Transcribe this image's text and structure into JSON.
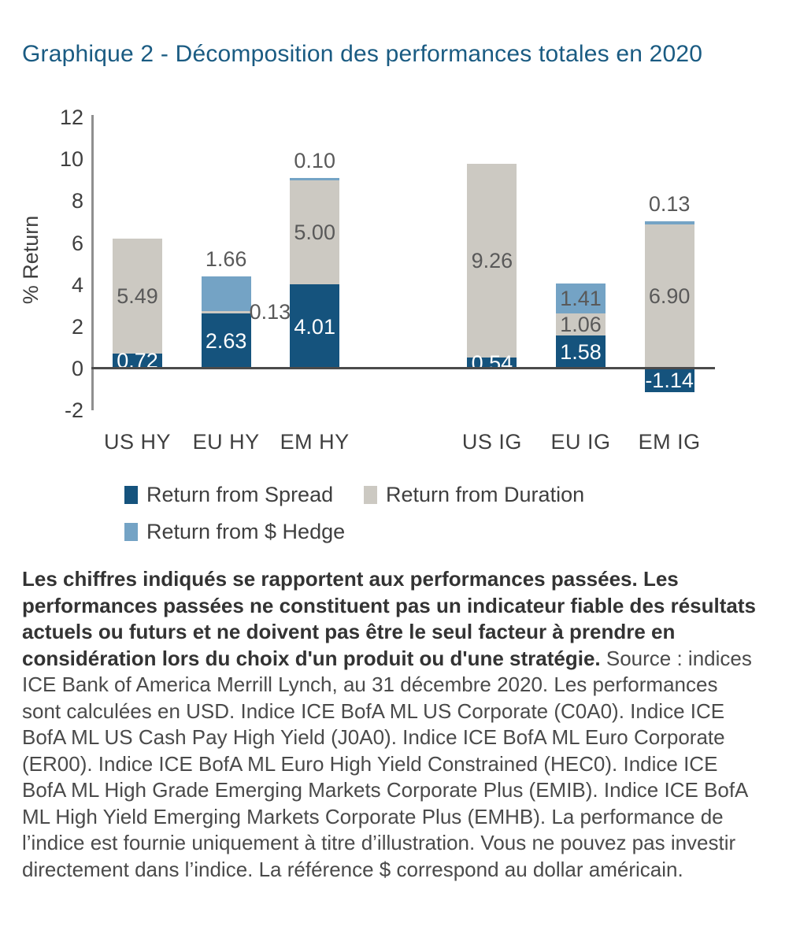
{
  "title": "Graphique 2 - Décomposition des performances totales en 2020",
  "chart_data": {
    "type": "bar",
    "stacked": true,
    "title": "Graphique 2 - Décomposition des performances totales en 2020",
    "xlabel": "",
    "ylabel": "% Return",
    "ylim": [
      -2,
      12
    ],
    "yticks": [
      12,
      10,
      8,
      6,
      4,
      2,
      0,
      -2
    ],
    "grid": false,
    "legend_position": "bottom",
    "legend": [
      {
        "key": "spread",
        "label": "Return from Spread",
        "color": "#15537D"
      },
      {
        "key": "duration",
        "label": "Return from Duration",
        "color": "#CCC9C2"
      },
      {
        "key": "hedge",
        "label": "Return from $ Hedge",
        "color": "#74A3C5"
      }
    ],
    "groups": [
      {
        "name": "HY",
        "categories": [
          {
            "label": "US HY",
            "segments": [
              {
                "series": "spread",
                "value": 0.72,
                "label": "0.72",
                "placement": "inside"
              },
              {
                "series": "duration",
                "value": 5.49,
                "label": "5.49",
                "placement": "inside"
              }
            ]
          },
          {
            "label": "EU HY",
            "segments": [
              {
                "series": "spread",
                "value": 2.63,
                "label": "2.63",
                "placement": "inside"
              },
              {
                "series": "duration",
                "value": 0.13,
                "label": "0.13",
                "placement": "right"
              },
              {
                "series": "hedge",
                "value": 1.66,
                "label": "1.66",
                "placement": "above"
              }
            ]
          },
          {
            "label": "EM HY",
            "segments": [
              {
                "series": "spread",
                "value": 4.01,
                "label": "4.01",
                "placement": "inside"
              },
              {
                "series": "duration",
                "value": 5.0,
                "label": "5.00",
                "placement": "inside"
              },
              {
                "series": "hedge",
                "value": 0.1,
                "label": "0.10",
                "placement": "above"
              }
            ]
          }
        ]
      },
      {
        "name": "IG",
        "categories": [
          {
            "label": "US IG",
            "segments": [
              {
                "series": "spread",
                "value": 0.54,
                "label": "0.54",
                "placement": "inside"
              },
              {
                "series": "duration",
                "value": 9.26,
                "label": "9.26",
                "placement": "inside"
              }
            ]
          },
          {
            "label": "EU IG",
            "segments": [
              {
                "series": "spread",
                "value": 1.58,
                "label": "1.58",
                "placement": "inside"
              },
              {
                "series": "duration",
                "value": 1.06,
                "label": "1.06",
                "placement": "inside"
              },
              {
                "series": "hedge",
                "value": 1.41,
                "label": "1.41",
                "placement": "inside"
              }
            ]
          },
          {
            "label": "EM IG",
            "segments": [
              {
                "series": "spread",
                "value": -1.14,
                "label": "-1.14",
                "placement": "inside"
              },
              {
                "series": "duration",
                "value": 6.9,
                "label": "6.90",
                "placement": "inside"
              },
              {
                "series": "hedge",
                "value": 0.13,
                "label": "0.13",
                "placement": "above"
              }
            ]
          }
        ]
      }
    ]
  },
  "footnote": {
    "bold": "Les chiffres indiqués se rapportent aux performances passées. Les performances passées ne constituent pas un indicateur fiable des résultats actuels ou futurs et ne doivent pas être le seul facteur à prendre en considération lors du choix d'un produit ou d'une stratégie.",
    "regular": "Source : indices ICE Bank of America Merrill Lynch, au 31 décembre 2020. Les performances sont calculées en USD. Indice ICE BofA ML US Corporate (C0A0). Indice ICE BofA ML US Cash Pay High Yield (J0A0). Indice ICE BofA ML Euro Corporate (ER00). Indice ICE BofA ML Euro High Yield Constrained (HEC0). Indice ICE BofA ML High Grade Emerging Markets Corporate Plus (EMIB). Indice ICE BofA ML High Yield Emerging Markets Corporate Plus (EMHB). La performance de l’indice est fournie uniquement à titre d’illustration. Vous ne pouvez pas investir directement dans l’indice. La référence $ correspond au dollar américain."
  }
}
